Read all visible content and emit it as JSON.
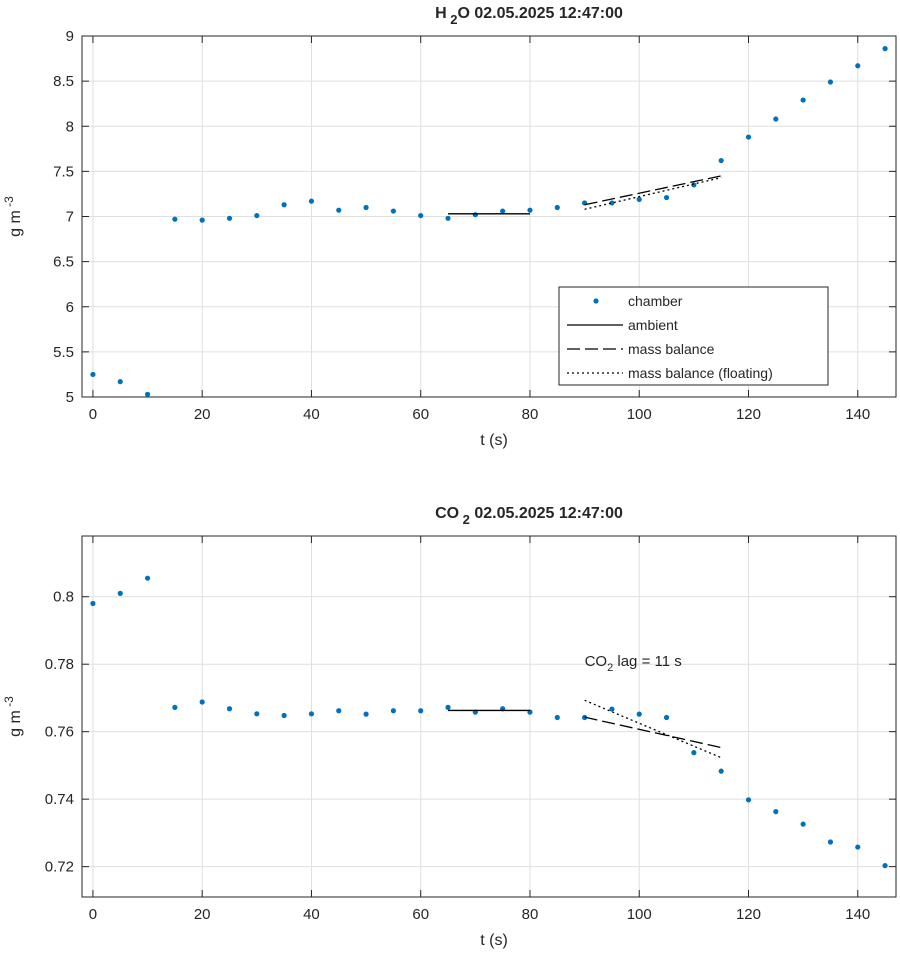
{
  "chart_data": [
    {
      "type": "scatter",
      "title": "H 2 O  02.05.2025 12:47:00",
      "title_parts": {
        "pre": "H",
        "sub": "2",
        "post": "O  02.05.2025 12:47:00"
      },
      "xlabel": "t (s)",
      "ylabel": "g m -3",
      "ylabel_parts": {
        "base": "g m",
        "sup": "-3"
      },
      "xlim": [
        -2,
        147
      ],
      "ylim": [
        5,
        9
      ],
      "xticks": [
        0,
        20,
        40,
        60,
        80,
        100,
        120,
        140
      ],
      "yticks": [
        5,
        5.5,
        6,
        6.5,
        7,
        7.5,
        8,
        8.5,
        9
      ],
      "ytick_labels": [
        "5",
        "5.5",
        "6",
        "6.5",
        "7",
        "7.5",
        "8",
        "8.5",
        "9"
      ],
      "grid": true,
      "legend": {
        "placement": "bottom-right",
        "entries": [
          {
            "label": "chamber",
            "style": "dot"
          },
          {
            "label": "ambient",
            "style": "solid"
          },
          {
            "label": "mass balance",
            "style": "dashed"
          },
          {
            "label": "mass balance (floating)",
            "style": "dotted"
          }
        ]
      },
      "series": [
        {
          "name": "chamber",
          "style": "dot",
          "color": "#0072BD",
          "points": [
            [
              0,
              5.25
            ],
            [
              5,
              5.17
            ],
            [
              10,
              5.03
            ],
            [
              15,
              6.97
            ],
            [
              20,
              6.96
            ],
            [
              25,
              6.98
            ],
            [
              30,
              7.01
            ],
            [
              35,
              7.13
            ],
            [
              40,
              7.17
            ],
            [
              45,
              7.07
            ],
            [
              50,
              7.1
            ],
            [
              55,
              7.06
            ],
            [
              60,
              7.01
            ],
            [
              65,
              6.98
            ],
            [
              70,
              7.02
            ],
            [
              75,
              7.06
            ],
            [
              80,
              7.07
            ],
            [
              85,
              7.1
            ],
            [
              90,
              7.15
            ],
            [
              95,
              7.15
            ],
            [
              100,
              7.19
            ],
            [
              105,
              7.21
            ],
            [
              110,
              7.35
            ],
            [
              115,
              7.62
            ],
            [
              120,
              7.88
            ],
            [
              125,
              8.08
            ],
            [
              130,
              8.29
            ],
            [
              135,
              8.49
            ],
            [
              140,
              8.67
            ],
            [
              145,
              8.86
            ]
          ]
        },
        {
          "name": "ambient",
          "style": "solid",
          "color": "#000000",
          "points": [
            [
              65,
              7.03
            ],
            [
              80,
              7.03
            ]
          ]
        },
        {
          "name": "mass balance",
          "style": "dashed",
          "color": "#000000",
          "points": [
            [
              90,
              7.13
            ],
            [
              115,
              7.45
            ]
          ]
        },
        {
          "name": "mass balance (floating)",
          "style": "dotted",
          "color": "#000000",
          "points": [
            [
              90,
              7.08
            ],
            [
              115,
              7.43
            ]
          ]
        }
      ]
    },
    {
      "type": "scatter",
      "title": "CO 2   02.05.2025 12:47:00",
      "title_parts": {
        "pre": "CO",
        "sub": "2",
        "post": "  02.05.2025 12:47:00"
      },
      "xlabel": "t (s)",
      "ylabel": "g m -3",
      "ylabel_parts": {
        "base": "g m",
        "sup": "-3"
      },
      "xlim": [
        -2,
        147
      ],
      "ylim": [
        0.711,
        0.818
      ],
      "xticks": [
        0,
        20,
        40,
        60,
        80,
        100,
        120,
        140
      ],
      "yticks": [
        0.72,
        0.74,
        0.76,
        0.78,
        0.8
      ],
      "ytick_labels": [
        "0.72",
        "0.74",
        "0.76",
        "0.78",
        "0.8"
      ],
      "grid": true,
      "annotation": {
        "pre": "CO",
        "sub": "2",
        "post": " lag = 11 s",
        "x": 90,
        "y": 0.7795
      },
      "series": [
        {
          "name": "chamber",
          "style": "dot",
          "color": "#0072BD",
          "points": [
            [
              0,
              0.798
            ],
            [
              5,
              0.801
            ],
            [
              10,
              0.8055
            ],
            [
              15,
              0.7672
            ],
            [
              20,
              0.7688
            ],
            [
              25,
              0.7668
            ],
            [
              30,
              0.7653
            ],
            [
              35,
              0.7648
            ],
            [
              40,
              0.7653
            ],
            [
              45,
              0.7662
            ],
            [
              50,
              0.7652
            ],
            [
              55,
              0.7662
            ],
            [
              60,
              0.7662
            ],
            [
              65,
              0.7672
            ],
            [
              70,
              0.7658
            ],
            [
              75,
              0.7668
            ],
            [
              80,
              0.7658
            ],
            [
              85,
              0.7642
            ],
            [
              90,
              0.7642
            ],
            [
              95,
              0.7667
            ],
            [
              100,
              0.7652
            ],
            [
              105,
              0.7642
            ],
            [
              110,
              0.7538
            ],
            [
              115,
              0.7483
            ],
            [
              120,
              0.7398
            ],
            [
              125,
              0.7363
            ],
            [
              130,
              0.7326
            ],
            [
              135,
              0.7273
            ],
            [
              140,
              0.7258
            ],
            [
              145,
              0.7203
            ]
          ]
        },
        {
          "name": "ambient",
          "style": "solid",
          "color": "#000000",
          "points": [
            [
              65,
              0.7663
            ],
            [
              80,
              0.7663
            ]
          ]
        },
        {
          "name": "mass balance",
          "style": "dashed",
          "color": "#000000",
          "points": [
            [
              90,
              0.7643
            ],
            [
              115,
              0.7553
            ]
          ]
        },
        {
          "name": "mass balance (floating)",
          "style": "dotted",
          "color": "#000000",
          "points": [
            [
              90,
              0.7693
            ],
            [
              115,
              0.7523
            ]
          ]
        }
      ]
    }
  ]
}
